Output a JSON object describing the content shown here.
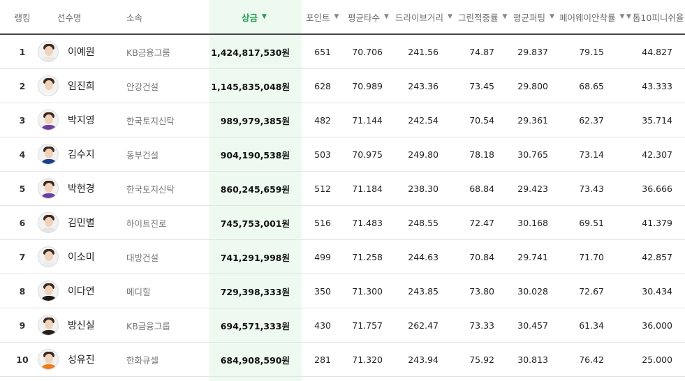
{
  "headers": {
    "rank": "랭킹",
    "name": "선수명",
    "team": "소속",
    "prize": "상금",
    "points": "포인트",
    "avg": "평균타수",
    "drive": "드라이브거리",
    "gir": "그린적중률",
    "putt": "평균퍼팅",
    "fairway": "페어웨이안착률",
    "top10": "톱10피니쉬율"
  },
  "sort_caret": "▼",
  "colors": {
    "sorted": "#1f9b54",
    "highlight": "#eefaef"
  },
  "rows": [
    {
      "rank": "1",
      "name": "이예원",
      "team": "KB금융그룹",
      "prize": "1,424,817,530원",
      "points": "651",
      "avg": "70.706",
      "drive": "241.56",
      "gir": "74.87",
      "putt": "29.837",
      "fairway": "79.15",
      "top10": "44.827",
      "shirt": "#e9e9e9"
    },
    {
      "rank": "2",
      "name": "임진희",
      "team": "안강건설",
      "prize": "1,145,835,048원",
      "points": "628",
      "avg": "70.989",
      "drive": "243.36",
      "gir": "73.45",
      "putt": "29.800",
      "fairway": "68.65",
      "top10": "43.333",
      "shirt": "#f4f4f4"
    },
    {
      "rank": "3",
      "name": "박지영",
      "team": "한국토지신탁",
      "prize": "989,979,385원",
      "points": "482",
      "avg": "71.144",
      "drive": "242.54",
      "gir": "70.54",
      "putt": "29.361",
      "fairway": "62.37",
      "top10": "35.714",
      "shirt": "#6b3fa0"
    },
    {
      "rank": "4",
      "name": "김수지",
      "team": "동부건설",
      "prize": "904,190,538원",
      "points": "503",
      "avg": "70.975",
      "drive": "249.80",
      "gir": "78.18",
      "putt": "30.765",
      "fairway": "73.14",
      "top10": "42.307",
      "shirt": "#1e3f8a"
    },
    {
      "rank": "5",
      "name": "박현경",
      "team": "한국토지신탁",
      "prize": "860,245,659원",
      "points": "512",
      "avg": "71.184",
      "drive": "238.30",
      "gir": "68.84",
      "putt": "29.423",
      "fairway": "73.43",
      "top10": "36.666",
      "shirt": "#6b3fa0"
    },
    {
      "rank": "6",
      "name": "김민별",
      "team": "하이트진로",
      "prize": "745,753,001원",
      "points": "516",
      "avg": "71.483",
      "drive": "248.55",
      "gir": "72.47",
      "putt": "30.168",
      "fairway": "69.51",
      "top10": "41.379",
      "shirt": "#e4e4e4"
    },
    {
      "rank": "7",
      "name": "이소미",
      "team": "대방건설",
      "prize": "741,291,998원",
      "points": "499",
      "avg": "71.258",
      "drive": "244.63",
      "gir": "70.84",
      "putt": "29.741",
      "fairway": "71.70",
      "top10": "42.857",
      "shirt": "#ececec"
    },
    {
      "rank": "8",
      "name": "이다연",
      "team": "메디힐",
      "prize": "729,398,333원",
      "points": "350",
      "avg": "71.300",
      "drive": "243.85",
      "gir": "73.80",
      "putt": "30.028",
      "fairway": "72.67",
      "top10": "30.434",
      "shirt": "#1a1a1a"
    },
    {
      "rank": "9",
      "name": "방신실",
      "team": "KB금융그룹",
      "prize": "694,571,333원",
      "points": "430",
      "avg": "71.757",
      "drive": "262.47",
      "gir": "73.33",
      "putt": "30.457",
      "fairway": "61.34",
      "top10": "36.000",
      "shirt": "#222222"
    },
    {
      "rank": "10",
      "name": "성유진",
      "team": "한화큐셀",
      "prize": "684,908,590원",
      "points": "281",
      "avg": "71.320",
      "drive": "243.94",
      "gir": "75.92",
      "putt": "30.813",
      "fairway": "76.42",
      "top10": "25.000",
      "shirt": "#f07a1a"
    }
  ]
}
